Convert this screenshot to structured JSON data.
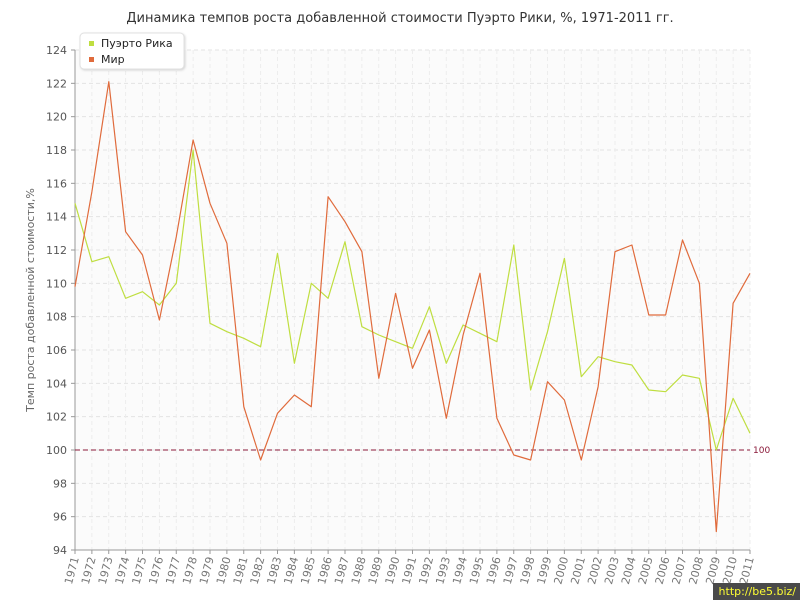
{
  "chart_data": {
    "type": "line",
    "title": "Динамика темпов роста добавленной стоимости Пуэрто Рики, %, 1971-2011 гг.",
    "ylabel": "Темп роста добавленной стоимости,%",
    "xlabel": "",
    "ylim": [
      94,
      124
    ],
    "yticks": [
      94,
      96,
      98,
      100,
      102,
      104,
      106,
      108,
      110,
      112,
      114,
      116,
      118,
      120,
      122,
      124
    ],
    "grid": true,
    "legend_position": "top-left",
    "categories": [
      "1971",
      "1972",
      "1973",
      "1974",
      "1975",
      "1976",
      "1977",
      "1978",
      "1979",
      "1980",
      "1981",
      "1982",
      "1983",
      "1984",
      "1985",
      "1986",
      "1987",
      "1988",
      "1989",
      "1990",
      "1991",
      "1992",
      "1993",
      "1994",
      "1995",
      "1996",
      "1997",
      "1998",
      "1999",
      "2000",
      "2001",
      "2002",
      "2003",
      "2004",
      "2005",
      "2006",
      "2007",
      "2008",
      "2009",
      "2010",
      "2011"
    ],
    "series": [
      {
        "name": "Пуэрто Рика",
        "color": "#bfde40",
        "values": [
          114.8,
          111.3,
          111.6,
          109.1,
          109.5,
          108.7,
          110.0,
          118.0,
          107.6,
          107.1,
          106.7,
          106.2,
          111.8,
          105.2,
          110.0,
          109.1,
          112.5,
          107.4,
          106.9,
          106.5,
          106.1,
          108.6,
          105.2,
          107.5,
          107.0,
          106.5,
          112.3,
          103.6,
          107.1,
          111.5,
          104.4,
          105.6,
          105.3,
          105.1,
          103.6,
          103.5,
          104.5,
          104.3,
          100.0,
          103.1,
          101.0
        ]
      },
      {
        "name": "Мир",
        "color": "#e06b3c",
        "values": [
          109.8,
          115.5,
          122.1,
          113.1,
          111.7,
          107.8,
          112.8,
          118.6,
          114.8,
          112.4,
          102.6,
          99.4,
          102.2,
          103.3,
          102.6,
          115.2,
          113.7,
          111.9,
          104.3,
          109.4,
          104.9,
          107.2,
          101.9,
          106.9,
          110.6,
          101.9,
          99.7,
          99.4,
          104.1,
          103.0,
          99.4,
          103.8,
          111.9,
          112.3,
          108.1,
          108.1,
          112.6,
          110.0,
          95.1,
          108.8,
          110.6
        ]
      }
    ],
    "reference_line": {
      "value": 100,
      "label": "100",
      "color": "#8b1a3a"
    }
  },
  "watermark": "http://be5.biz/"
}
